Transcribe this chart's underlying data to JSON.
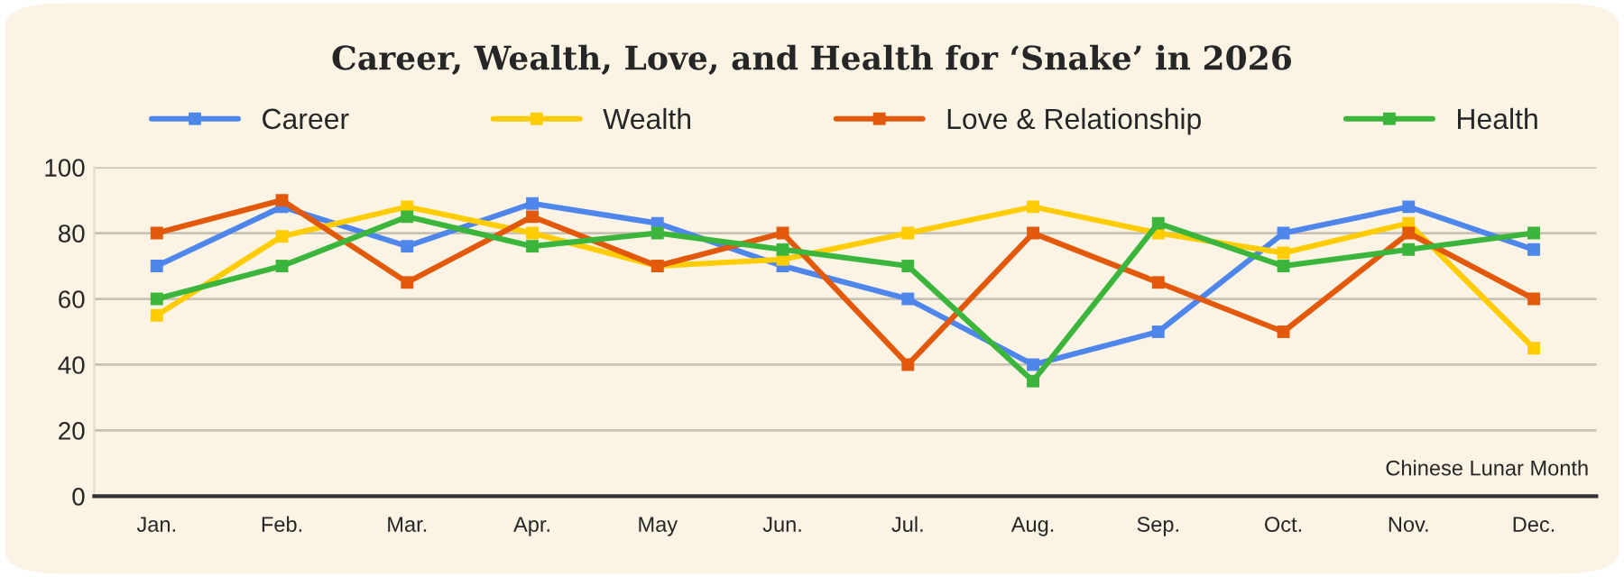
{
  "chart_data": {
    "type": "line",
    "title": "Career, Wealth, Love, and Health for ‘Snake’ in 2026",
    "xlabel": "Chinese Lunar Month",
    "categories": [
      "Jan.",
      "Feb.",
      "Mar.",
      "Apr.",
      "May",
      "Jun.",
      "Jul.",
      "Aug.",
      "Sep.",
      "Oct.",
      "Nov.",
      "Dec."
    ],
    "series": [
      {
        "name": "Career",
        "color": "#4e86ec",
        "values": [
          70,
          88,
          76,
          89,
          83,
          70,
          60,
          40,
          50,
          80,
          88,
          75
        ]
      },
      {
        "name": "Wealth",
        "color": "#ffcc00",
        "values": [
          55,
          79,
          88,
          80,
          70,
          72,
          80,
          88,
          80,
          74,
          83,
          45
        ]
      },
      {
        "name": "Love & Relationship",
        "color": "#e2590c",
        "values": [
          80,
          90,
          65,
          85,
          70,
          80,
          40,
          80,
          65,
          50,
          80,
          60
        ]
      },
      {
        "name": "Health",
        "color": "#3bb53b",
        "values": [
          60,
          70,
          85,
          76,
          80,
          75,
          70,
          35,
          83,
          70,
          75,
          80
        ]
      }
    ],
    "ylim": [
      0,
      100
    ],
    "yticks": [
      0,
      20,
      40,
      60,
      80,
      100
    ],
    "grid": "y",
    "legend": "top",
    "marker": "square",
    "line_style": "solid"
  }
}
